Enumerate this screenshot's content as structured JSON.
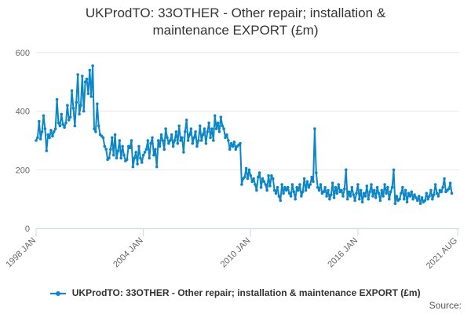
{
  "title_line1": "UKProdTO: 33OTHER - Other repair; installation &",
  "title_line2": "maintenance EXPORT (£m)",
  "legend_label": "UKProdTO: 33OTHER - Other repair; installation & maintenance EXPORT (£m)",
  "credits": "Source:",
  "colors": {
    "series": "#0c86c7",
    "grid": "#e6e6e6",
    "axis": "#ccd6eb"
  },
  "chart_data": {
    "type": "line",
    "title": "UKProdTO: 33OTHER - Other repair; installation & maintenance EXPORT (£m)",
    "xlabel": "",
    "ylabel": "",
    "ylim": [
      0,
      600
    ],
    "y_ticks": [
      0,
      200,
      400,
      600
    ],
    "x_tick_labels": [
      "1998 JAN",
      "2004 JAN",
      "2010 JAN",
      "2016 JAN",
      "2021 AUG"
    ],
    "x_tick_dates": [
      "1998-01",
      "2004-01",
      "2010-01",
      "2016-01",
      "2021-08"
    ],
    "xlim": [
      "1998-01",
      "2021-09"
    ],
    "grid": true,
    "legend_position": "bottom",
    "series": [
      {
        "name": "UKProdTO: 33OTHER - Other repair; installation & maintenance EXPORT (£m)",
        "start": "1998-01",
        "frequency": "monthly",
        "values": [
          300,
          310,
          365,
          305,
          330,
          385,
          340,
          265,
          320,
          310,
          335,
          315,
          330,
          340,
          440,
          360,
          350,
          390,
          355,
          345,
          360,
          420,
          370,
          380,
          470,
          410,
          350,
          430,
          525,
          390,
          420,
          520,
          400,
          500,
          510,
          460,
          540,
          450,
          555,
          340,
          330,
          425,
          350,
          320,
          315,
          310,
          280,
          270,
          235,
          240,
          270,
          310,
          250,
          320,
          240,
          265,
          300,
          240,
          280,
          250,
          230,
          235,
          280,
          275,
          300,
          210,
          240,
          260,
          220,
          280,
          240,
          225,
          250,
          260,
          270,
          300,
          240,
          290,
          310,
          250,
          270,
          210,
          300,
          280,
          320,
          300,
          270,
          340,
          310,
          290,
          300,
          320,
          280,
          300,
          330,
          290,
          350,
          300,
          310,
          260,
          330,
          370,
          300,
          320,
          340,
          290,
          310,
          330,
          280,
          300,
          350,
          300,
          320,
          340,
          290,
          330,
          360,
          310,
          340,
          300,
          385,
          340,
          360,
          330,
          380,
          350,
          340,
          310,
          320,
          300,
          270,
          290,
          280,
          295,
          270,
          280,
          285,
          290,
          150,
          170,
          175,
          205,
          170,
          200,
          180,
          160,
          170,
          150,
          130,
          175,
          190,
          140,
          170,
          160,
          150,
          130,
          180,
          145,
          180,
          170,
          130,
          120,
          140,
          110,
          95,
          150,
          120,
          140,
          130,
          140,
          120,
          110,
          150,
          125,
          100,
          140,
          130,
          150,
          110,
          125,
          170,
          130,
          160,
          140,
          150,
          175,
          160,
          340,
          190,
          140,
          130,
          150,
          120,
          125,
          140,
          110,
          130,
          100,
          115,
          155,
          105,
          140,
          120,
          150,
          125,
          130,
          110,
          135,
          200,
          100,
          125,
          110,
          140,
          115,
          95,
          120,
          150,
          100,
          130,
          90,
          120,
          110,
          145,
          100,
          125,
          150,
          110,
          130,
          105,
          140,
          120,
          95,
          130,
          110,
          150,
          120,
          140,
          100,
          125,
          140,
          200,
          85,
          110,
          95,
          100,
          120,
          140,
          100,
          130,
          90,
          120,
          110,
          125,
          100,
          115,
          105,
          95,
          110,
          85,
          105,
          90,
          95,
          120,
          100,
          110,
          130,
          100,
          115,
          150,
          120,
          110,
          130,
          125,
          140,
          170,
          125,
          130,
          135,
          155,
          120
        ]
      }
    ]
  }
}
